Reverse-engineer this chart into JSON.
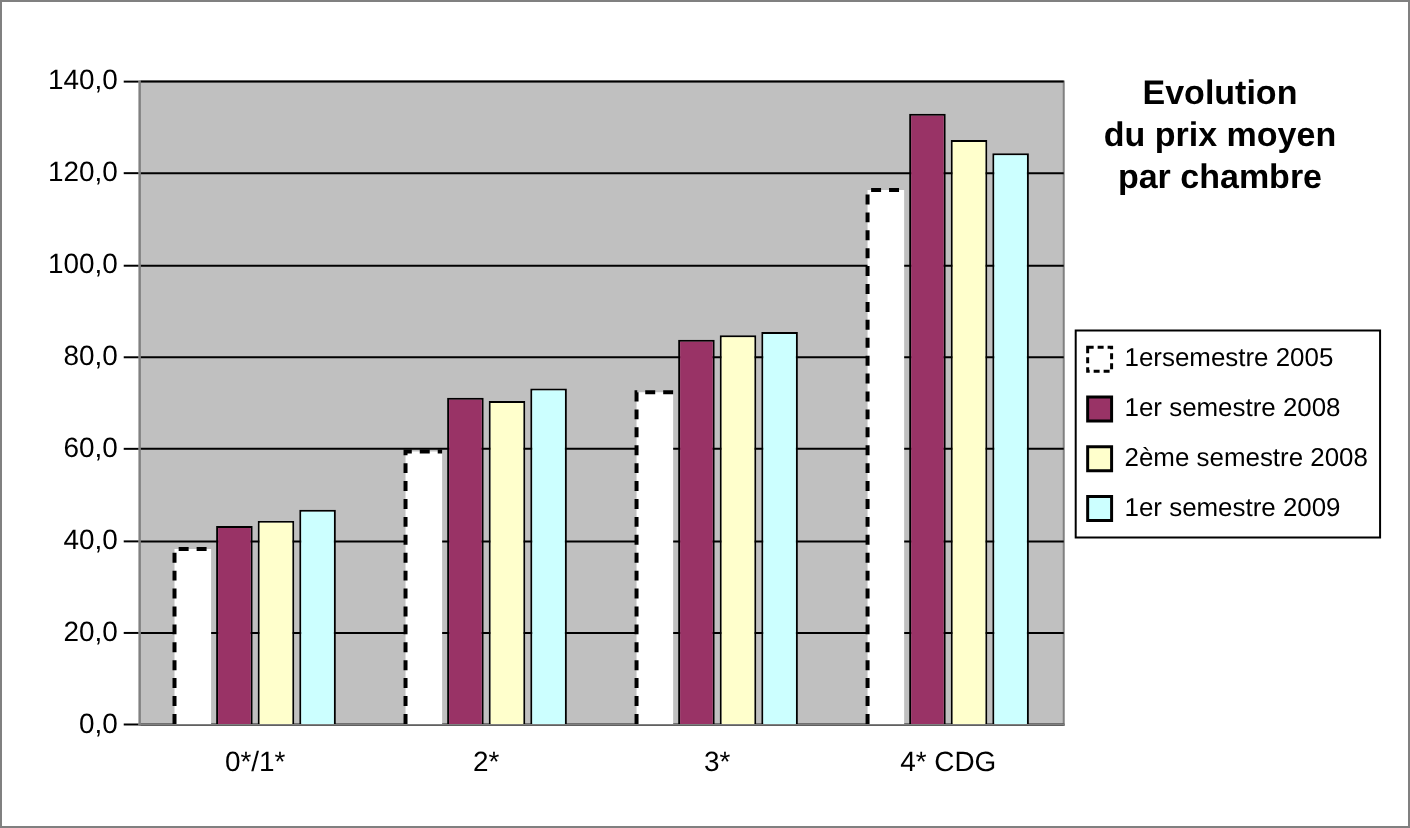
{
  "chart_data": {
    "type": "bar",
    "title": "Evolution\ndu prix moyen\npar chambre",
    "categories": [
      "0*/1*",
      "2*",
      "3*",
      "4* CDG"
    ],
    "series": [
      {
        "name": "1ersemestre 2005",
        "color": "#ffffff",
        "line_style": "dashed",
        "values": [
          38.3,
          59.5,
          72.4,
          116.4
        ]
      },
      {
        "name": "1er semestre 2008",
        "color": "#993366",
        "values": [
          43.3,
          71.2,
          83.8,
          133.0
        ]
      },
      {
        "name": "2ème semestre 2008",
        "color": "#ffffcc",
        "values": [
          44.4,
          70.5,
          84.8,
          127.3
        ]
      },
      {
        "name": "1er semestre 2009",
        "color": "#ccffff",
        "values": [
          46.8,
          73.2,
          85.5,
          124.4
        ]
      }
    ],
    "ylim": [
      0,
      140
    ],
    "yticks": [
      {
        "value": 0,
        "label": "0,0"
      },
      {
        "value": 20,
        "label": "20,0"
      },
      {
        "value": 40,
        "label": "40,0"
      },
      {
        "value": 60,
        "label": "60,0"
      },
      {
        "value": 80,
        "label": "80,0"
      },
      {
        "value": 100,
        "label": "100,0"
      },
      {
        "value": 120,
        "label": "120,0"
      },
      {
        "value": 140,
        "label": "140,0"
      }
    ],
    "grid": "y",
    "legend": "right"
  }
}
